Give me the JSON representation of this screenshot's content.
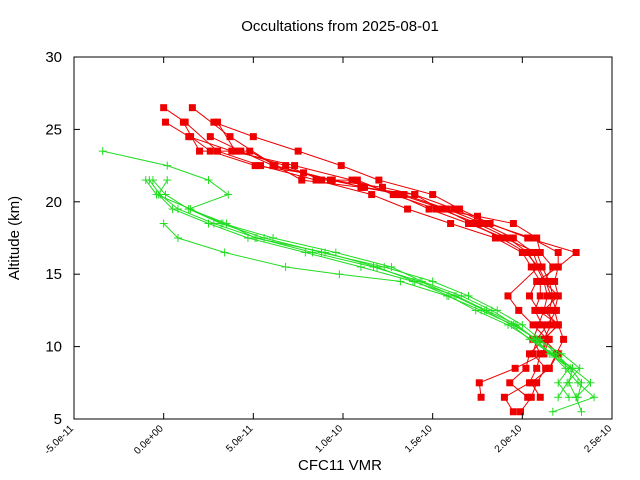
{
  "chart_data": {
    "type": "scatter",
    "title": "Occultations from 2025-08-01",
    "xlabel": "CFC11 VMR",
    "ylabel": "Altitude (km)",
    "xlim": [
      -5e-11,
      2.5e-10
    ],
    "ylim": [
      5,
      30
    ],
    "x_ticks": [
      {
        "value": -5e-11,
        "label": "-5.0e-11"
      },
      {
        "value": 0,
        "label": "0.0e+00"
      },
      {
        "value": 5e-11,
        "label": "5.0e-11"
      },
      {
        "value": 1e-10,
        "label": "1.0e-10"
      },
      {
        "value": 1.5e-10,
        "label": "1.5e-10"
      },
      {
        "value": 2e-10,
        "label": "2.0e-10"
      },
      {
        "value": 2.5e-10,
        "label": "2.5e-10"
      }
    ],
    "y_ticks": [
      {
        "value": 5,
        "label": "5"
      },
      {
        "value": 10,
        "label": "10"
      },
      {
        "value": 15,
        "label": "15"
      },
      {
        "value": 20,
        "label": "20"
      },
      {
        "value": 25,
        "label": "25"
      },
      {
        "value": 30,
        "label": "30"
      }
    ],
    "grid": false,
    "legend": "none",
    "colors": {
      "red": "#ee0000",
      "green": "#22dd22"
    },
    "series": [
      {
        "color": "red",
        "marker": "square",
        "points": [
          [
            1.6e-11,
            26.5
          ],
          [
            3.7e-11,
            24.5
          ],
          [
            6.2e-11,
            22.5
          ],
          [
            9.4e-11,
            21.5
          ],
          [
            1.22e-10,
            21
          ],
          [
            1.4e-10,
            20.5
          ],
          [
            1.54e-10,
            19.5
          ],
          [
            1.75e-10,
            18.5
          ],
          [
            1.92e-10,
            17.5
          ],
          [
            2.03e-10,
            16.5
          ],
          [
            2.08e-10,
            15.5
          ],
          [
            2.12e-10,
            14.5
          ],
          [
            2.14e-10,
            13.5
          ],
          [
            2.12e-10,
            12.5
          ],
          [
            2.09e-10,
            11.5
          ],
          [
            2.06e-10,
            10.5
          ],
          [
            2.1e-10,
            9.5
          ],
          [
            2.08e-10,
            8.5
          ],
          [
            2.04e-10,
            7.5
          ],
          [
            1.9e-10,
            6.5
          ],
          [
            1.95e-10,
            5.5
          ]
        ]
      },
      {
        "color": "red",
        "marker": "square",
        "points": [
          [
            0,
            26.5
          ],
          [
            1.2e-11,
            25.5
          ],
          [
            3e-11,
            23.5
          ],
          [
            5.4e-11,
            22.5
          ],
          [
            8.5e-11,
            21.5
          ],
          [
            1.16e-10,
            20.5
          ],
          [
            1.36e-10,
            19.5
          ],
          [
            1.6e-10,
            18.5
          ],
          [
            1.85e-10,
            17.5
          ],
          [
            2e-10,
            16.5
          ],
          [
            2.05e-10,
            15.5
          ],
          [
            2.1e-10,
            14.5
          ],
          [
            2.1e-10,
            13.5
          ],
          [
            2.07e-10,
            12.5
          ],
          [
            2.11e-10,
            11.5
          ],
          [
            2.15e-10,
            10.5
          ],
          [
            2.12e-10,
            9.5
          ],
          [
            1.96e-10,
            8.5
          ],
          [
            1.76e-10,
            7.5
          ],
          [
            1.77e-10,
            6.5
          ]
        ]
      },
      {
        "color": "red",
        "marker": "square",
        "points": [
          [
            1e-12,
            25.5
          ],
          [
            1.4e-11,
            24.5
          ],
          [
            3.8e-11,
            23.5
          ],
          [
            7.3e-11,
            22.5
          ],
          [
            1.05e-10,
            21.5
          ],
          [
            1.3e-10,
            20.5
          ],
          [
            1.48e-10,
            19.5
          ],
          [
            1.7e-10,
            18.5
          ],
          [
            1.9e-10,
            17.5
          ],
          [
            2.08e-10,
            16.5
          ],
          [
            2.11e-10,
            15.5
          ],
          [
            2.15e-10,
            14.5
          ],
          [
            2.17e-10,
            13.5
          ],
          [
            2.15e-10,
            12.5
          ],
          [
            2.16e-10,
            11.5
          ],
          [
            2.12e-10,
            10.5
          ],
          [
            2.04e-10,
            9.5
          ],
          [
            2.02e-10,
            8.5
          ],
          [
            1.93e-10,
            7.5
          ],
          [
            2.03e-10,
            6.5
          ]
        ]
      },
      {
        "color": "red",
        "marker": "square",
        "points": [
          [
            1.1e-11,
            25.5
          ],
          [
            2e-11,
            23.5
          ],
          [
            4.8e-11,
            23.5
          ],
          [
            7.7e-11,
            21.5
          ],
          [
            1.1e-10,
            21
          ],
          [
            1.34e-10,
            20.5
          ],
          [
            1.58e-10,
            19.5
          ],
          [
            1.78e-10,
            18.5
          ],
          [
            1.95e-10,
            17.5
          ],
          [
            2.06e-10,
            16.5
          ],
          [
            2.09e-10,
            15.5
          ],
          [
            2.13e-10,
            14.5
          ],
          [
            2.16e-10,
            13.5
          ],
          [
            2.19e-10,
            12.5
          ],
          [
            2.14e-10,
            11.5
          ],
          [
            2.08e-10,
            10.5
          ],
          [
            2.06e-10,
            9.5
          ],
          [
            2.13e-10,
            8.5
          ],
          [
            2.08e-10,
            7.5
          ],
          [
            2.05e-10,
            6.5
          ],
          [
            1.99e-10,
            5.5
          ]
        ]
      },
      {
        "color": "red",
        "marker": "square",
        "points": [
          [
            2.8e-11,
            25.5
          ],
          [
            5e-11,
            24.5
          ],
          [
            7.5e-11,
            23.5
          ],
          [
            9.9e-11,
            22.5
          ],
          [
            1.2e-10,
            21.5
          ],
          [
            1.5e-10,
            20.5
          ],
          [
            1.65e-10,
            19.5
          ],
          [
            1.82e-10,
            18.5
          ],
          [
            2.03e-10,
            17.5
          ],
          [
            2.3e-10,
            16.5
          ],
          [
            2.2e-10,
            15.5
          ],
          [
            2.18e-10,
            14.5
          ],
          [
            2.2e-10,
            13.5
          ],
          [
            2.18e-10,
            12.5
          ],
          [
            2.2e-10,
            11.5
          ],
          [
            2.23e-10,
            10.5
          ],
          [
            2.19e-10,
            9.5
          ],
          [
            2.15e-10,
            8.5
          ],
          [
            2.05e-10,
            7.5
          ],
          [
            2.1e-10,
            6.5
          ]
        ]
      },
      {
        "color": "red",
        "marker": "square",
        "points": [
          [
            1.5e-11,
            24.5
          ],
          [
            2.6e-11,
            23.5
          ],
          [
            5.1e-11,
            22.5
          ],
          [
            7.8e-11,
            22
          ],
          [
            1.11e-10,
            21
          ],
          [
            1.4e-10,
            20.5
          ],
          [
            1.62e-10,
            19.5
          ],
          [
            1.81e-10,
            18.5
          ],
          [
            2.05e-10,
            17.5
          ],
          [
            2.2e-10,
            16.5
          ],
          [
            2.2e-10,
            15.5
          ],
          [
            2.08e-10,
            14.5
          ],
          [
            2.04e-10,
            13.5
          ],
          [
            2.09e-10,
            12.5
          ],
          [
            2.2e-10,
            11.5
          ],
          [
            2.12e-10,
            10.5
          ],
          [
            2.12e-10,
            9.5
          ]
        ]
      },
      {
        "color": "red",
        "marker": "square",
        "points": [
          [
            3e-11,
            25.5
          ],
          [
            4e-11,
            23.5
          ],
          [
            6.8e-11,
            22.5
          ],
          [
            8.8e-11,
            21.5
          ],
          [
            1.08e-10,
            21.5
          ],
          [
            1.28e-10,
            20.5
          ],
          [
            1.52e-10,
            19.5
          ],
          [
            1.75e-10,
            19
          ],
          [
            1.95e-10,
            18.5
          ],
          [
            2.08e-10,
            17.5
          ],
          [
            2.1e-10,
            16.5
          ],
          [
            2.17e-10,
            15.5
          ],
          [
            2.12e-10,
            14.5
          ],
          [
            2.2e-10,
            13.5
          ],
          [
            2.12e-10,
            12.5
          ],
          [
            2.2e-10,
            11.5
          ],
          [
            2.12e-10,
            10.5
          ],
          [
            2.2e-10,
            9.5
          ],
          [
            2.15e-10,
            8.5
          ]
        ]
      },
      {
        "color": "red",
        "marker": "square",
        "points": [
          [
            2.6e-11,
            24.5
          ],
          [
            4.3e-11,
            23.5
          ],
          [
            6.1e-11,
            22.5
          ],
          [
            9.3e-11,
            21.5
          ],
          [
            1.12e-10,
            21
          ],
          [
            1.32e-10,
            20.5
          ],
          [
            1.56e-10,
            19.5
          ],
          [
            1.72e-10,
            18.5
          ],
          [
            1.88e-10,
            17.5
          ],
          [
            2.02e-10,
            16.5
          ],
          [
            2.09e-10,
            15.5
          ],
          [
            1.92e-10,
            13.5
          ],
          [
            1.98e-10,
            12.5
          ],
          [
            2.06e-10,
            11.5
          ],
          [
            2.14e-10,
            10.5
          ],
          [
            2.11e-10,
            9.5
          ]
        ]
      },
      {
        "color": "green",
        "marker": "plus",
        "points": [
          [
            -3.4e-11,
            23.5
          ],
          [
            2e-12,
            22.5
          ],
          [
            2.5e-11,
            21.5
          ],
          [
            3.6e-11,
            20.5
          ],
          [
            1.4e-11,
            19.5
          ],
          [
            3.5e-11,
            18.5
          ],
          [
            5.1e-11,
            17.5
          ],
          [
            9e-11,
            16.5
          ],
          [
            1.19e-10,
            15.5
          ],
          [
            1.4e-10,
            14.5
          ],
          [
            1.59e-10,
            13.5
          ],
          [
            1.74e-10,
            12.5
          ],
          [
            1.92e-10,
            11.5
          ],
          [
            2.05e-10,
            10.5
          ],
          [
            2.17e-10,
            9.5
          ],
          [
            2.28e-10,
            8.5
          ],
          [
            2.38e-10,
            7.5
          ],
          [
            2.3e-10,
            6.5
          ],
          [
            2.33e-10,
            5.5
          ]
        ]
      },
      {
        "color": "green",
        "marker": "plus",
        "points": [
          [
            -6e-12,
            21.5
          ],
          [
            1e-12,
            20.5
          ],
          [
            1.4e-11,
            19.5
          ],
          [
            3.2e-11,
            18.5
          ],
          [
            5.6e-11,
            17.5
          ],
          [
            8.8e-11,
            16.5
          ],
          [
            1.23e-10,
            15.5
          ],
          [
            1.5e-10,
            14.5
          ],
          [
            1.7e-10,
            13.5
          ],
          [
            1.86e-10,
            12.5
          ],
          [
            2e-10,
            11.5
          ],
          [
            2.1e-10,
            10.5
          ],
          [
            2.19e-10,
            9.5
          ],
          [
            2.27e-10,
            8.5
          ],
          [
            2.33e-10,
            7.5
          ],
          [
            2.31e-10,
            6.5
          ]
        ]
      },
      {
        "color": "green",
        "marker": "plus",
        "points": [
          [
            2e-12,
            21.5
          ],
          [
            -3e-12,
            20.5
          ],
          [
            5e-12,
            19.5
          ],
          [
            2.5e-11,
            18.5
          ],
          [
            4.7e-11,
            17.5
          ],
          [
            7.9e-11,
            16.5
          ],
          [
            1.1e-10,
            15.5
          ],
          [
            1.39e-10,
            14.5
          ],
          [
            1.63e-10,
            13.5
          ],
          [
            1.8e-10,
            12.5
          ],
          [
            1.97e-10,
            11.5
          ],
          [
            2.07e-10,
            10.5
          ],
          [
            2.16e-10,
            9.5
          ],
          [
            2.24e-10,
            8.5
          ],
          [
            2.31e-10,
            7.5
          ],
          [
            2.4e-10,
            6.5
          ],
          [
            2.17e-10,
            5.5
          ]
        ]
      },
      {
        "color": "green",
        "marker": "plus",
        "points": [
          [
            -1e-11,
            21.5
          ],
          [
            -4e-12,
            20.5
          ],
          [
            1.5e-11,
            19.5
          ],
          [
            3.3e-11,
            18.5
          ],
          [
            6.1e-11,
            17.5
          ],
          [
            9.6e-11,
            16.5
          ],
          [
            1.27e-10,
            15.5
          ],
          [
            1.44e-10,
            14.5
          ],
          [
            1.66e-10,
            13.5
          ],
          [
            1.83e-10,
            12.5
          ],
          [
            1.96e-10,
            11.5
          ],
          [
            2.08e-10,
            10.5
          ],
          [
            2.15e-10,
            9.5
          ],
          [
            2.28e-10,
            8.5
          ],
          [
            2.26e-10,
            7.5
          ],
          [
            2.3e-10,
            6.5
          ]
        ]
      },
      {
        "color": "green",
        "marker": "plus",
        "points": [
          [
            -8e-12,
            21.5
          ],
          [
            -2e-12,
            20.5
          ],
          [
            8e-12,
            19.5
          ],
          [
            2.8e-11,
            18.5
          ],
          [
            5.2e-11,
            17.5
          ],
          [
            8.3e-11,
            16.5
          ],
          [
            1.17e-10,
            15.5
          ],
          [
            1.43e-10,
            14.5
          ],
          [
            1.62e-10,
            13.5
          ],
          [
            1.79e-10,
            12.5
          ],
          [
            1.94e-10,
            11.5
          ],
          [
            2.04e-10,
            10.5
          ],
          [
            2.16e-10,
            9.5
          ],
          [
            2.26e-10,
            8.5
          ],
          [
            2.2e-10,
            7.5
          ],
          [
            2.26e-10,
            6.5
          ]
        ]
      },
      {
        "color": "green",
        "marker": "plus",
        "points": [
          [
            0,
            18.5
          ],
          [
            8e-12,
            17.5
          ],
          [
            3.4e-11,
            16.5
          ],
          [
            6.8e-11,
            15.5
          ],
          [
            9.8e-11,
            15
          ],
          [
            1.32e-10,
            14.5
          ],
          [
            1.58e-10,
            13.5
          ],
          [
            1.77e-10,
            12.5
          ],
          [
            1.95e-10,
            11.5
          ],
          [
            2.08e-10,
            10.5
          ],
          [
            2.22e-10,
            9.5
          ],
          [
            2.32e-10,
            8.5
          ],
          [
            2.25e-10,
            7.5
          ],
          [
            2.2e-10,
            6.5
          ]
        ]
      }
    ]
  }
}
